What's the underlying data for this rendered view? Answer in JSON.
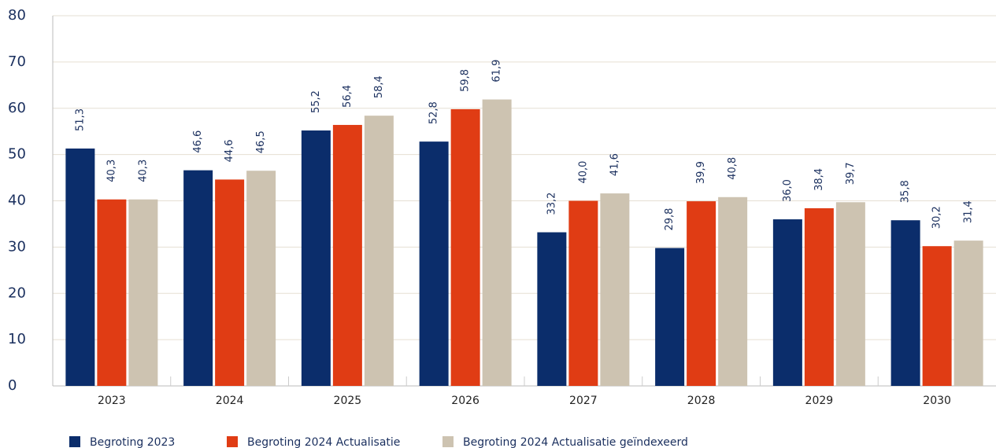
{
  "chart_data": {
    "type": "bar",
    "categories": [
      "2023",
      "2024",
      "2025",
      "2026",
      "2027",
      "2028",
      "2029",
      "2030"
    ],
    "series": [
      {
        "name": "Begroting 2023",
        "color": "#0b2d6b",
        "values": [
          51.3,
          46.6,
          55.2,
          52.8,
          33.2,
          29.8,
          36.0,
          35.8
        ],
        "value_labels": [
          "51,3",
          "46,6",
          "55,2",
          "52,8",
          "33,2",
          "29,8",
          "36,0",
          "35,8"
        ]
      },
      {
        "name": "Begroting 2024 Actualisatie",
        "color": "#e03c14",
        "values": [
          40.3,
          44.6,
          56.4,
          59.8,
          40.0,
          39.9,
          38.4,
          30.2
        ],
        "value_labels": [
          "40,3",
          "44,6",
          "56,4",
          "59,8",
          "40,0",
          "39,9",
          "38,4",
          "30,2"
        ]
      },
      {
        "name": "Begroting 2024 Actualisatie geïndexeerd",
        "color": "#cdc3b1",
        "values": [
          40.3,
          46.5,
          58.4,
          61.9,
          41.6,
          40.8,
          39.7,
          31.4
        ],
        "value_labels": [
          "40,3",
          "46,5",
          "58,4",
          "61,9",
          "41,6",
          "40,8",
          "39,7",
          "31,4"
        ]
      }
    ],
    "ylim": [
      0,
      80
    ],
    "yticks": [
      0,
      10,
      20,
      30,
      40,
      50,
      60,
      70,
      80
    ],
    "grid": true,
    "legend": "bottom"
  }
}
